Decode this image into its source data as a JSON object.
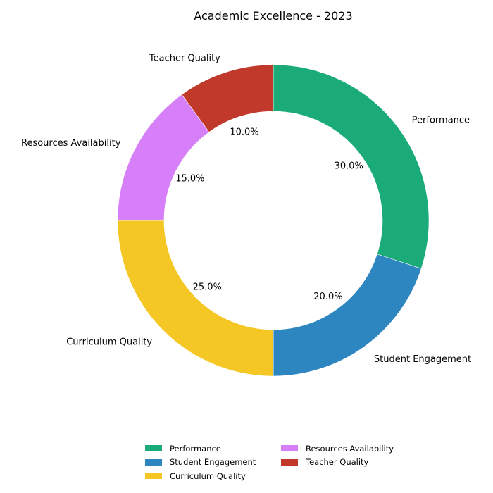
{
  "chart_data": {
    "type": "pie",
    "donut": true,
    "title": "Academic Excellence - 2023",
    "categories": [
      "Performance",
      "Student Engagement",
      "Curriculum Quality",
      "Resources Availability",
      "Teacher Quality"
    ],
    "values": [
      30.0,
      20.0,
      25.0,
      15.0,
      10.0
    ],
    "percent_labels": [
      "30.0%",
      "20.0%",
      "25.0%",
      "15.0%",
      "10.0%"
    ],
    "colors": [
      "#1aab78",
      "#2e86c1",
      "#f4c724",
      "#d67ff9",
      "#c0392b"
    ],
    "start_angle_deg": 90,
    "direction": "clockwise",
    "legend": {
      "position": "bottom",
      "columns": 2,
      "entries": [
        "Performance",
        "Student Engagement",
        "Curriculum Quality",
        "Resources Availability",
        "Teacher Quality"
      ]
    }
  }
}
